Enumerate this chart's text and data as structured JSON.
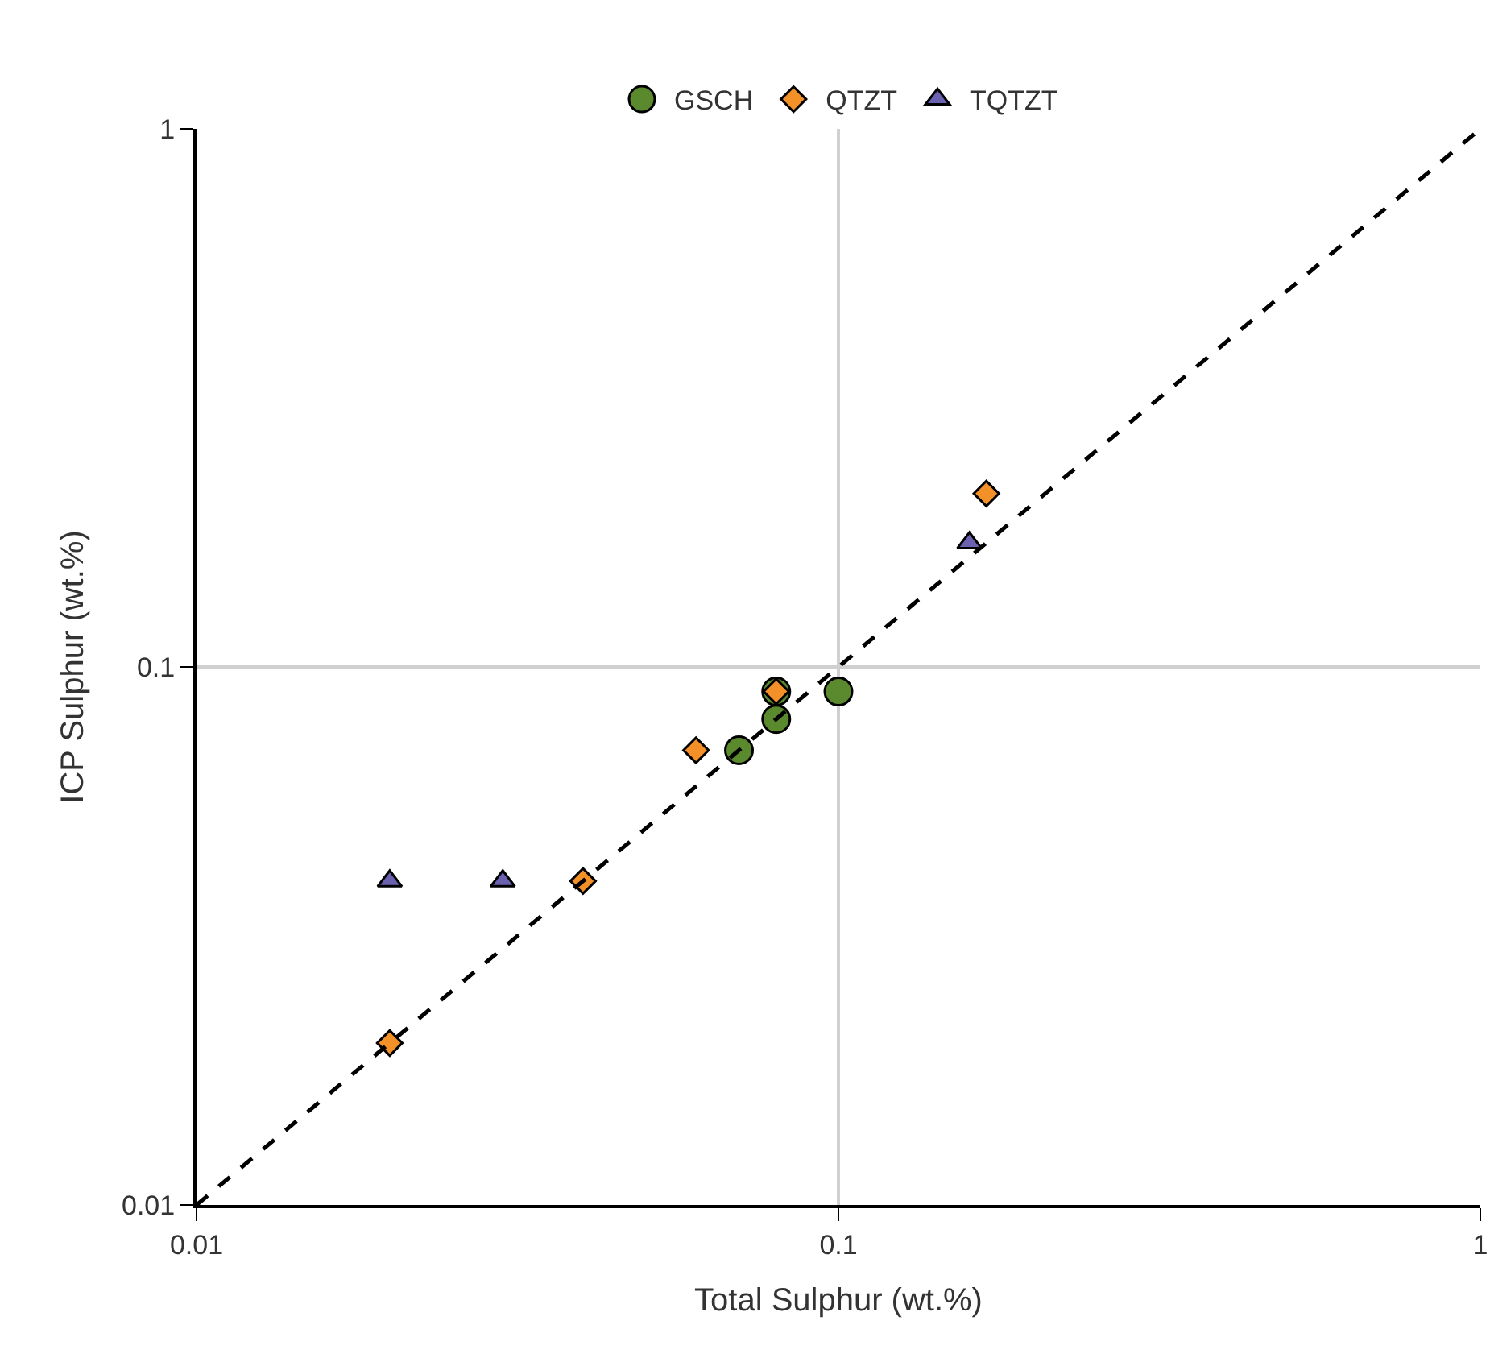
{
  "chart_data": {
    "type": "scatter",
    "xlabel": "Total Sulphur (wt.%)",
    "ylabel": "ICP Sulphur (wt.%)",
    "log": "xy",
    "xlim": [
      0.01,
      1
    ],
    "ylim": [
      0.01,
      1
    ],
    "xticks": [
      0.01,
      0.1,
      1
    ],
    "yticks": [
      0.01,
      0.1,
      1
    ],
    "grid": true,
    "legend": "top",
    "series": [
      {
        "name": "GSCH",
        "color": "#5b8a2e",
        "marker": "circle",
        "x": [
          0.07,
          0.08,
          0.08,
          0.1
        ],
        "values": [
          0.07,
          0.08,
          0.09,
          0.09
        ]
      },
      {
        "name": "QTZT",
        "color": "#f39128",
        "marker": "diamond",
        "x": [
          0.02,
          0.04,
          0.06,
          0.08,
          0.17
        ],
        "values": [
          0.02,
          0.04,
          0.07,
          0.09,
          0.21
        ]
      },
      {
        "name": "TQTZT",
        "color": "#6a62b0",
        "marker": "triangle",
        "x": [
          0.02,
          0.03,
          0.16
        ],
        "values": [
          0.04,
          0.04,
          0.17
        ]
      },
      {
        "type": "line",
        "color": "#000000",
        "line_style": "dashed",
        "marker": "none",
        "x": [
          0.01,
          1
        ],
        "values": [
          0.01,
          1
        ]
      }
    ]
  }
}
